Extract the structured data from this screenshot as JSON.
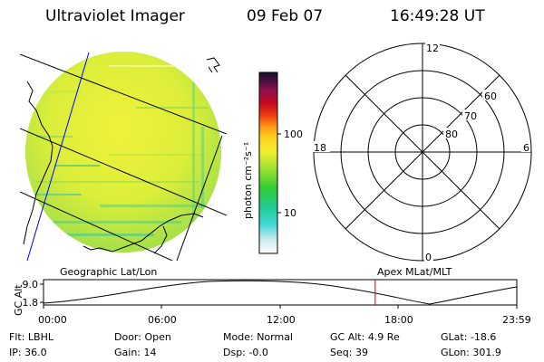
{
  "header": {
    "instrument": "Ultraviolet Imager",
    "date": "09 Feb 07",
    "time": "16:49:28 UT"
  },
  "colorbar": {
    "label": "photon cm⁻²s⁻¹",
    "ticks": [
      "100",
      "10"
    ]
  },
  "polar": {
    "mlt_labels": {
      "top": "12",
      "left": "18",
      "right": "6",
      "bottom": "0"
    },
    "lat_labels": [
      "60",
      "70",
      "80"
    ]
  },
  "panels": {
    "left_caption": "Geographic Lat/Lon",
    "right_caption": "Apex MLat/MLT"
  },
  "orbit_plot": {
    "ylabel": "GC Alt",
    "yticks": [
      "9.0",
      "1.8"
    ],
    "xticks": [
      "00:00",
      "06:00",
      "12:00",
      "18:00",
      "23:59"
    ],
    "marker_time_hours": 16.82
  },
  "info": {
    "row1": [
      {
        "label": "Flt:",
        "value": "LBHL"
      },
      {
        "label": "Door:",
        "value": "Open"
      },
      {
        "label": "Mode:",
        "value": "Normal"
      },
      {
        "label": "GC Alt:",
        "value": "4.9 Re"
      },
      {
        "label": "GLat:",
        "value": "-18.6"
      }
    ],
    "row2": [
      {
        "label": "IP:",
        "value": "36.0"
      },
      {
        "label": "Gain:",
        "value": "14"
      },
      {
        "label": "Dsp:",
        "value": "-0.0"
      },
      {
        "label": "Seq:",
        "value": "39"
      },
      {
        "label": "GLon:",
        "value": "301.9"
      }
    ]
  }
}
